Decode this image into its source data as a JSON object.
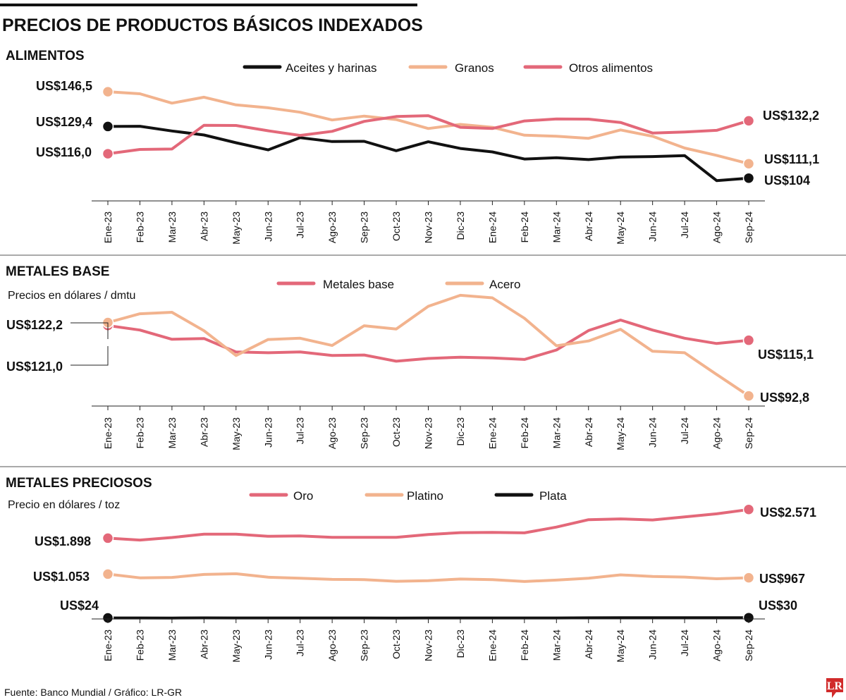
{
  "title": "PRECIOS DE PRODUCTOS BÁSICOS INDEXADOS",
  "source": "Fuente: Banco Mundial / Gráfico: LR-GR",
  "logo": "LR",
  "colors": {
    "black": "#111111",
    "peach": "#f2b38e",
    "pink": "#e36879",
    "rule": "#222222",
    "logo_bg": "#d12b2b"
  },
  "months": [
    "Ene-23",
    "Feb-23",
    "Mar-23",
    "Abr-23",
    "May-23",
    "Jun-23",
    "Jul-23",
    "Ago-23",
    "Sep-23",
    "Oct-23",
    "Nov-23",
    "Dic-23",
    "Ene-24",
    "Feb-24",
    "Mar-24",
    "Abr-24",
    "May-24",
    "Jun-24",
    "Jul-24",
    "Ago-24",
    "Sep-24"
  ],
  "chart_data": [
    {
      "type": "line",
      "title": "ALIMENTOS",
      "subtitle": "",
      "ylim": [
        98,
        150
      ],
      "series": [
        {
          "name": "Aceites y harinas",
          "color": "#111111",
          "values": [
            129.4,
            129.5,
            127.2,
            125.2,
            121.4,
            117.9,
            123.9,
            122.0,
            122.1,
            117.5,
            121.9,
            118.6,
            116.9,
            113.4,
            114.0,
            113.1,
            114.4,
            114.6,
            115.1,
            102.8,
            104.0
          ],
          "start_label": "US$129,4",
          "end_label": "US$104"
        },
        {
          "name": "Granos",
          "color": "#f2b38e",
          "values": [
            146.5,
            145.5,
            140.9,
            143.8,
            140.0,
            138.6,
            136.4,
            132.6,
            134.5,
            132.8,
            128.4,
            130.4,
            129.0,
            125.1,
            124.6,
            123.6,
            127.7,
            124.6,
            118.8,
            115.2,
            111.1
          ],
          "start_label": "US$146,5",
          "end_label": "US$111,1"
        },
        {
          "name": "Otros alimentos",
          "color": "#e36879",
          "values": [
            116.0,
            118.1,
            118.3,
            130.0,
            129.9,
            127.3,
            125.0,
            127.0,
            131.9,
            134.3,
            134.7,
            129.0,
            128.4,
            132.1,
            133.1,
            133.0,
            131.4,
            126.2,
            126.7,
            127.5,
            132.2
          ],
          "start_label": "US$116,0",
          "end_label": "US$132,2"
        }
      ]
    },
    {
      "type": "line",
      "title": "METALES BASE",
      "subtitle": "Precios en dólares / dmtu",
      "ylim": [
        91,
        128
      ],
      "series": [
        {
          "name": "Metales base",
          "color": "#e36879",
          "values": [
            121.0,
            119.2,
            115.5,
            115.8,
            110.4,
            110.1,
            110.4,
            109.0,
            109.2,
            106.7,
            107.8,
            108.3,
            108.0,
            107.4,
            111.2,
            119.0,
            123.2,
            119.2,
            115.9,
            113.8,
            115.1
          ],
          "start_label": "US$121,0",
          "end_label": "US$115,1"
        },
        {
          "name": "Acero",
          "color": "#f2b38e",
          "values": [
            122.2,
            125.7,
            126.3,
            118.9,
            109.0,
            115.4,
            115.9,
            113.0,
            120.9,
            119.6,
            128.7,
            133.1,
            132.1,
            123.9,
            112.9,
            114.8,
            119.5,
            110.7,
            110.1,
            101.4,
            92.8
          ],
          "start_label": "US$122,2",
          "end_label": "US$92,8"
        }
      ]
    },
    {
      "type": "line",
      "title": "METALES PRECIOSOS",
      "subtitle": "Precio en dólares / toz",
      "ylim": [
        0,
        2700
      ],
      "series": [
        {
          "name": "Oro",
          "color": "#e36879",
          "values": [
            1898,
            1853,
            1913,
            1993,
            1991,
            1943,
            1951,
            1918,
            1917,
            1916,
            1985,
            2027,
            2034,
            2023,
            2158,
            2332,
            2351,
            2326,
            2398,
            2470,
            2571
          ],
          "start_label": "US$1.898",
          "end_label": "US$2.571"
        },
        {
          "name": "Platino",
          "color": "#f2b38e",
          "values": [
            1053,
            966,
            976,
            1046,
            1061,
            980,
            957,
            930,
            925,
            885,
            899,
            938,
            925,
            880,
            913,
            957,
            1036,
            999,
            984,
            945,
            967
          ],
          "start_label": "US$1.053",
          "end_label": "US$967"
        },
        {
          "name": "Plata",
          "color": "#111111",
          "values": [
            24,
            23,
            22,
            25,
            24,
            23,
            24,
            24,
            23,
            22,
            23,
            24,
            23,
            23,
            24,
            27,
            29,
            30,
            29,
            28,
            30
          ],
          "start_label": "US$24",
          "end_label": "US$30"
        }
      ]
    }
  ]
}
